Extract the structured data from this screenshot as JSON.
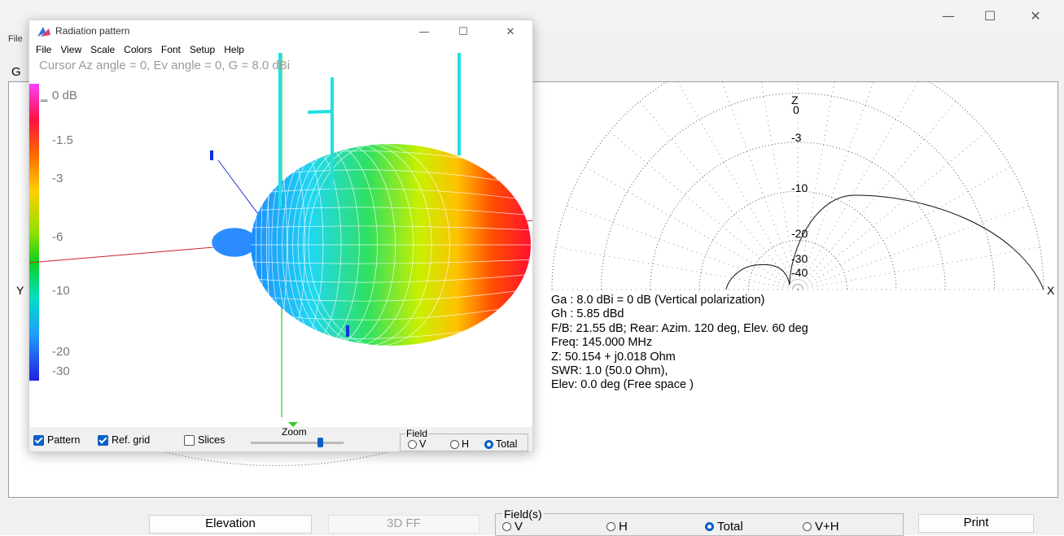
{
  "main_window": {
    "controls": {
      "minimize": "—",
      "maximize": "☐",
      "close": "✕"
    },
    "menu_stub": "File",
    "tab_stub": "G",
    "plot": {
      "z_label": "Z",
      "x_label": "X",
      "y_label": "Y",
      "ring_labels": [
        "0",
        "-3",
        "-10",
        "-20",
        "-30",
        "-40"
      ]
    },
    "stats": [
      "Ga : 8.0 dBi = 0 dB  (Vertical polarization)",
      "Gh : 5.85 dBd",
      "F/B: 21.55 dB; Rear: Azim. 120 deg,  Elev. 60 deg",
      "Freq: 145.000 MHz",
      "Z: 50.154 + j0.018 Ohm",
      "SWR: 1.0 (50.0 Ohm),",
      "Elev: 0.0 deg (Free space )"
    ],
    "buttons": {
      "elevation": "Elevation",
      "ff3d": "3D FF",
      "print": "Print"
    },
    "fields": {
      "label": "Field(s)",
      "options": [
        "V",
        "H",
        "Total",
        "V+H"
      ],
      "selected": "Total"
    }
  },
  "dialog": {
    "title": "Radiation pattern",
    "controls": {
      "minimize": "—",
      "maximize": "☐",
      "close": "✕"
    },
    "menu": [
      "File",
      "View",
      "Scale",
      "Colors",
      "Font",
      "Setup",
      "Help"
    ],
    "cursor_readout": "Cursor Az angle = 0,  Ev angle = 0,  G = 8.0 dBi",
    "scale_labels": [
      "0 dB",
      "-1.5",
      "-3",
      "-6",
      "-10",
      "-20",
      "-30"
    ],
    "checkboxes": [
      {
        "label": "Pattern",
        "checked": true
      },
      {
        "label": "Ref. grid",
        "checked": true
      },
      {
        "label": "Slices",
        "checked": false
      }
    ],
    "zoom_label": "Zoom",
    "zoom_level": 0.72,
    "field": {
      "label": "Field",
      "options": [
        "V",
        "H",
        "Total"
      ],
      "selected": "Total"
    }
  },
  "colors": {
    "accent": "#0a5fc8",
    "x_axis": "#cc2222",
    "z_axis": "#33cc33",
    "antenna": "#22e0e0"
  }
}
